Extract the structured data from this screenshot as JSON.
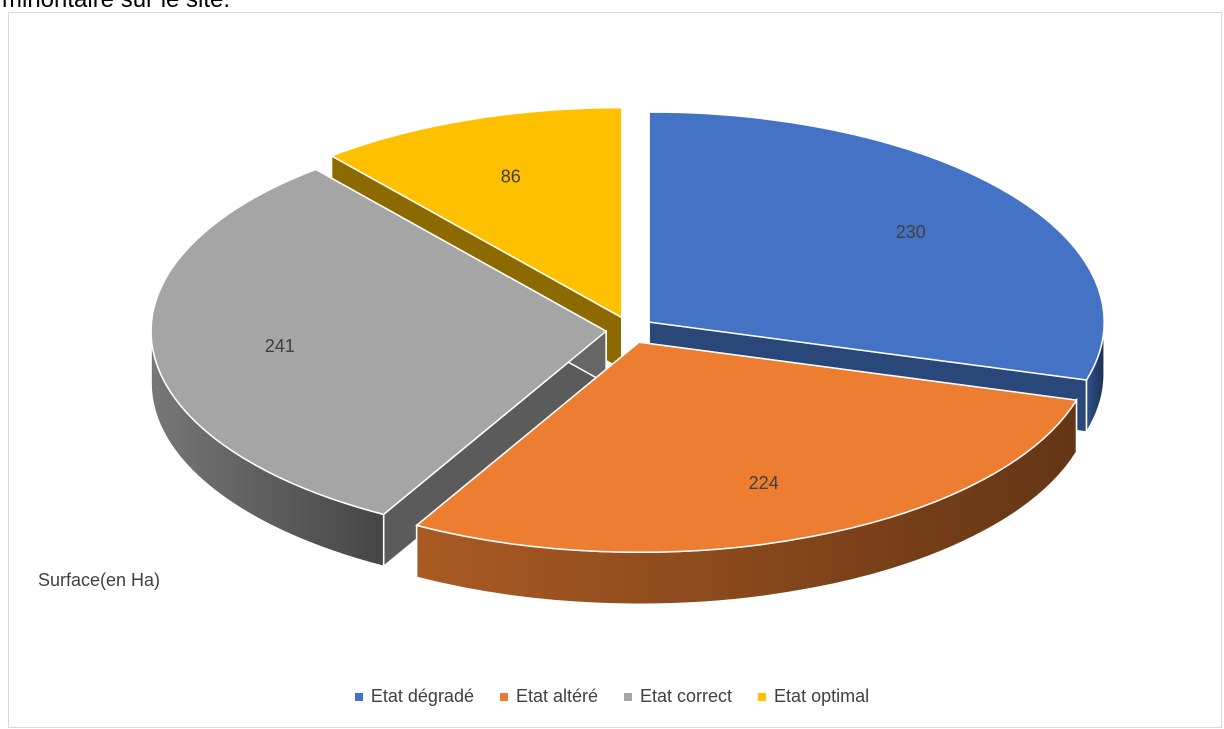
{
  "page": {
    "top_text": "minoritaire sur le site."
  },
  "chart_data": {
    "type": "pie",
    "style": "3d-exploded",
    "title": "",
    "side_label": "Surface(en Ha)",
    "legend_position": "bottom",
    "categories": [
      "Etat dégradé",
      "Etat altéré",
      "Etat correct",
      "Etat optimal"
    ],
    "values": [
      230,
      224,
      241,
      86
    ],
    "colors": [
      "#4472C4",
      "#ED7D31",
      "#A5A5A5",
      "#FFC000"
    ],
    "series": [
      {
        "name": "Surface(en Ha)",
        "values": [
          230,
          224,
          241,
          86
        ]
      }
    ]
  }
}
